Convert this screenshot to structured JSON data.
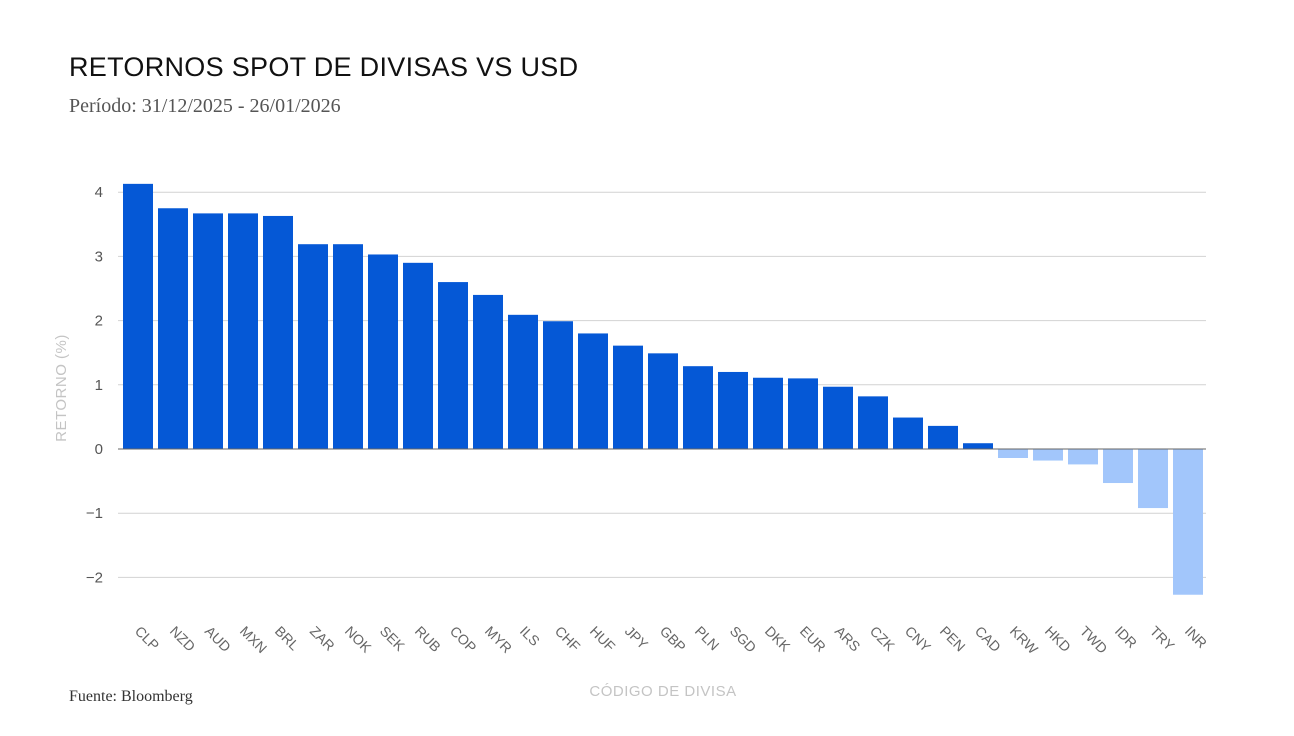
{
  "header": {
    "title": "RETORNOS SPOT DE DIVISAS VS USD",
    "subtitle": "Período: 31/12/2025 - 26/01/2026"
  },
  "footer": {
    "source": "Fuente: Bloomberg"
  },
  "colors": {
    "positive": "#0558d6",
    "negative": "#a2c6fb",
    "grid": "#d2d2d2",
    "zero_line": "#666666"
  },
  "chart_data": {
    "type": "bar",
    "title": "RETORNOS SPOT DE DIVISAS VS USD",
    "subtitle": "Período: 31/12/2025 - 26/01/2026",
    "xlabel": "CÓDIGO DE DIVISA",
    "ylabel": "RETORNO (%)",
    "ylim": [
      -2.3,
      4.3
    ],
    "yticks": [
      -2,
      -1,
      0,
      1,
      2,
      3,
      4
    ],
    "ytick_labels": [
      "−2",
      "−1",
      "0",
      "1",
      "2",
      "3",
      "4"
    ],
    "grid": true,
    "legend": "none",
    "categories": [
      "CLP",
      "NZD",
      "AUD",
      "MXN",
      "BRL",
      "ZAR",
      "NOK",
      "SEK",
      "RUB",
      "COP",
      "MYR",
      "ILS",
      "CHF",
      "HUF",
      "JPY",
      "GBP",
      "PLN",
      "SGD",
      "DKK",
      "EUR",
      "ARS",
      "CZK",
      "CNY",
      "PEN",
      "CAD",
      "KRW",
      "HKD",
      "TWD",
      "IDR",
      "TRY",
      "INR"
    ],
    "values": [
      4.13,
      3.75,
      3.67,
      3.67,
      3.63,
      3.19,
      3.19,
      3.03,
      2.9,
      2.6,
      2.4,
      2.09,
      1.99,
      1.8,
      1.61,
      1.49,
      1.29,
      1.2,
      1.11,
      1.1,
      0.97,
      0.82,
      0.49,
      0.36,
      0.09,
      -0.14,
      -0.18,
      -0.24,
      -0.53,
      -0.92,
      -2.27
    ]
  }
}
